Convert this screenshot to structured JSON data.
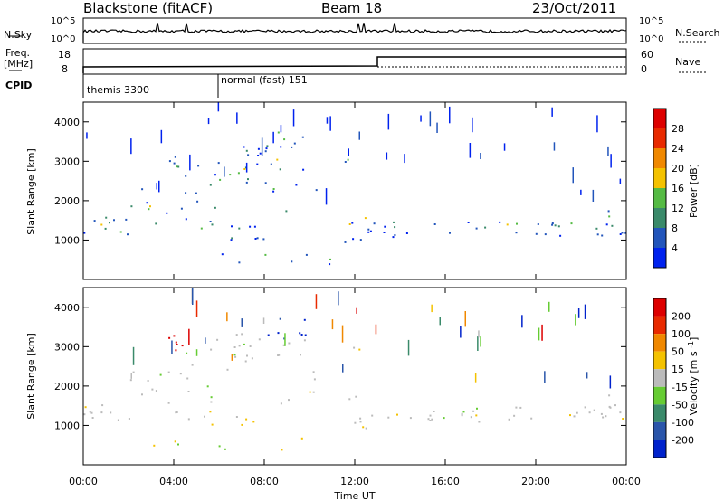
{
  "header": {
    "station": "Blackstone (fitACF)",
    "beam": "Beam 18",
    "date": "23/Oct/2011"
  },
  "panels": {
    "nsky_label": "N.Sky",
    "nsky_ticks": [
      "10^5",
      "10^0"
    ],
    "nsearch_label": "N.Search",
    "nsearch_ticks": [
      "10^5",
      "10^0"
    ],
    "freq_label": "Freq.",
    "freq_unit": "[MHz]",
    "freq_ticks": [
      "18",
      "8"
    ],
    "nave_label": "Nave",
    "nave_ticks": [
      "60",
      "0"
    ],
    "cpid_label": "CPID",
    "cpid_segments": [
      "themis 3300",
      "normal (fast) 151"
    ]
  },
  "chart_data": [
    {
      "type": "heatmap",
      "name": "power",
      "ylabel": "Slant Range [km]",
      "yticks": [
        1000,
        2000,
        3000,
        4000
      ],
      "ylim": [
        0,
        4500
      ],
      "xlim": [
        0,
        24
      ],
      "colorbar": {
        "label": "Power [dB]",
        "ticks": [
          "4",
          "8",
          "12",
          "16",
          "20",
          "24",
          "28"
        ],
        "colors": [
          "#0022ee",
          "#2255bb",
          "#3a8a6a",
          "#55bb44",
          "#f4c200",
          "#f08800",
          "#e82a00",
          "#dd0000"
        ]
      }
    },
    {
      "type": "heatmap",
      "name": "velocity",
      "ylabel": "Slant Range [km]",
      "yticks": [
        1000,
        2000,
        3000,
        4000
      ],
      "ylim": [
        0,
        4500
      ],
      "xlim": [
        0,
        24
      ],
      "colorbar": {
        "label": "Velocity [m s^-1]",
        "ticks": [
          "200",
          "100",
          "50",
          "15",
          "-15",
          "-50",
          "-100",
          "-200"
        ],
        "colors": [
          "#0022cc",
          "#2a55aa",
          "#3a8a6a",
          "#66cc33",
          "#bbbbbb",
          "#f4c200",
          "#f08800",
          "#e82a00",
          "#dd0000"
        ]
      }
    }
  ],
  "xaxis": {
    "label": "Time UT",
    "ticks": [
      "00:00",
      "04:00",
      "08:00",
      "12:00",
      "16:00",
      "20:00",
      "00:00"
    ]
  }
}
